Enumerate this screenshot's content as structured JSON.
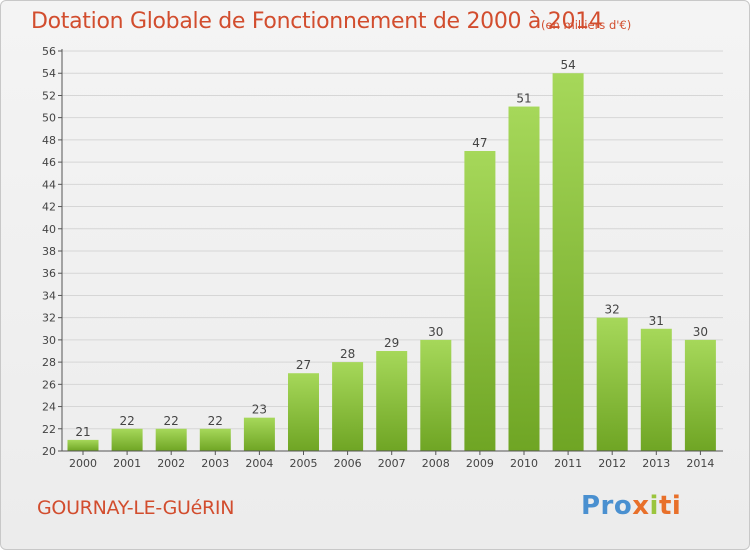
{
  "header": {
    "title": "Dotation Globale de Fonctionnement de 2000 à 2014",
    "unit": "(en milliers d'€)"
  },
  "footer": {
    "commune": "GOURNAY-LE-GUéRIN",
    "logo_parts": [
      "Pro",
      "x",
      "i",
      "ti"
    ]
  },
  "colors": {
    "bar_top": "#a6d85a",
    "bar_bottom": "#6fa524",
    "title": "#d24d2e",
    "grid": "#d6d6d6"
  },
  "chart_data": {
    "type": "bar",
    "categories": [
      "2000",
      "2001",
      "2002",
      "2003",
      "2004",
      "2005",
      "2006",
      "2007",
      "2008",
      "2009",
      "2010",
      "2011",
      "2012",
      "2013",
      "2014"
    ],
    "values": [
      21,
      22,
      22,
      22,
      23,
      27,
      28,
      29,
      30,
      47,
      51,
      54,
      32,
      31,
      30
    ],
    "ylim": [
      20,
      56
    ],
    "yticks": [
      20,
      22,
      24,
      26,
      28,
      30,
      32,
      34,
      36,
      38,
      40,
      42,
      44,
      46,
      48,
      50,
      52,
      54,
      56
    ],
    "grid": true
  }
}
